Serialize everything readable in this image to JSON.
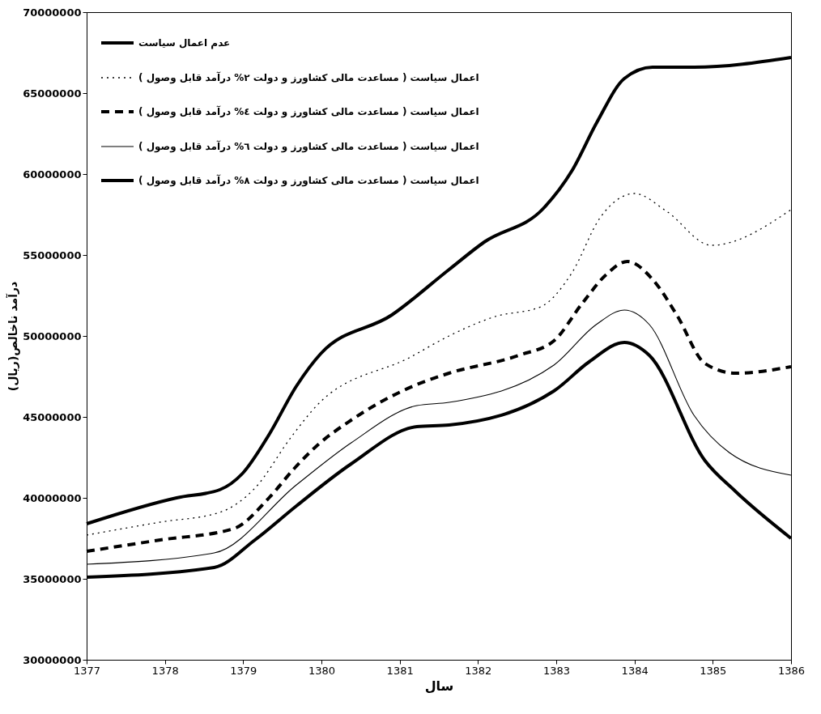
{
  "chart_data": {
    "type": "line",
    "xlabel": "سال",
    "ylabel": "درآمد ناخالص(ریال)",
    "xlim": [
      1377,
      1386
    ],
    "xticks": [
      1377,
      1378,
      1379,
      1380,
      1381,
      1382,
      1383,
      1384,
      1385,
      1386
    ],
    "ylim": [
      30000000,
      70000000
    ],
    "yticks": [
      30000000,
      35000000,
      40000000,
      45000000,
      50000000,
      55000000,
      60000000,
      65000000,
      70000000
    ],
    "grid": false,
    "legend": "top left",
    "marker": "none",
    "series": [
      {
        "name": "عدم اعمال سیاست",
        "color": "#000000",
        "line_style": "solid",
        "x": [
          1377,
          1378.15,
          1378.7,
          1378.99,
          1379.33,
          1379.68,
          1379.99,
          1380.9,
          1381.63,
          1382.08,
          1382.84,
          1383.2,
          1383.52,
          1383.87,
          1384.23,
          1384.76,
          1386
        ],
        "values": [
          38400000,
          40000000,
          40500000,
          41500000,
          43900000,
          46900000,
          48900000,
          51300000,
          54100000,
          55800000,
          57900000,
          60200000,
          63200000,
          65900000,
          66600000,
          66600000,
          67200000
        ]
      },
      {
        "name": "اعمال سیاست ( مساعدت مالی کشاورز و دولت ٢% درآمد قابل وصول )",
        "color": "#000000",
        "line_style": "dotted",
        "x": [
          1377,
          1377.94,
          1378.7,
          1379.15,
          1379.62,
          1379.96,
          1381.14,
          1381.63,
          1382.22,
          1382.8,
          1383.2,
          1383.56,
          1384.0,
          1384.41,
          1384.98,
          1386
        ],
        "values": [
          37700000,
          38500000,
          39100000,
          40600000,
          43800000,
          45800000,
          48700000,
          50000000,
          51200000,
          51800000,
          53900000,
          57300000,
          58800000,
          57700000,
          55600000,
          57800000
        ]
      },
      {
        "name": "اعمال سیاست ( مساعدت مالی کشاورز و دولت ٤% درآمد قابل وصول )",
        "color": "#000000",
        "line_style": "dashed",
        "x": [
          1377,
          1377.94,
          1378.88,
          1379.33,
          1379.65,
          1379.96,
          1380.38,
          1381.22,
          1381.63,
          1382.52,
          1382.97,
          1383.33,
          1383.64,
          1383.91,
          1384.23,
          1384.54,
          1384.9,
          1385.29,
          1386
        ],
        "values": [
          36700000,
          37400000,
          38100000,
          40000000,
          41800000,
          43300000,
          44800000,
          47000000,
          47700000,
          48800000,
          49700000,
          52000000,
          53800000,
          54600000,
          53500000,
          51300000,
          48300000,
          47700000,
          48100000
        ]
      },
      {
        "name": "اعمال سیاست ( مساعدت مالی کشاورز و دولت ٦% درآمد قابل وصول )",
        "color": "#000000",
        "line_style": "solid",
        "x": [
          1377,
          1378.63,
          1379.68,
          1380.38,
          1381.22,
          1381.63,
          1382.97,
          1383.51,
          1383.87,
          1384.19,
          1384.76,
          1385.21,
          1386
        ],
        "values": [
          35900000,
          36600000,
          40800000,
          43400000,
          45700000,
          45900000,
          48200000,
          50700000,
          51600000,
          50700000,
          45100000,
          42800000,
          41400000
        ]
      },
      {
        "name": "اعمال سیاست ( مساعدت مالی کشاورز و دولت ٨% درآمد قابل وصول )",
        "color": "#000000",
        "line_style": "solid",
        "x": [
          1377,
          1378.63,
          1379.15,
          1379.68,
          1380.38,
          1381.22,
          1381.63,
          1382.97,
          1383.42,
          1383.87,
          1384.19,
          1384.9,
          1385.29,
          1386
        ],
        "values": [
          35100000,
          35700000,
          37400000,
          39500000,
          42100000,
          44400000,
          44500000,
          46600000,
          48400000,
          49600000,
          48800000,
          42300000,
          40400000,
          37500000
        ]
      }
    ]
  }
}
